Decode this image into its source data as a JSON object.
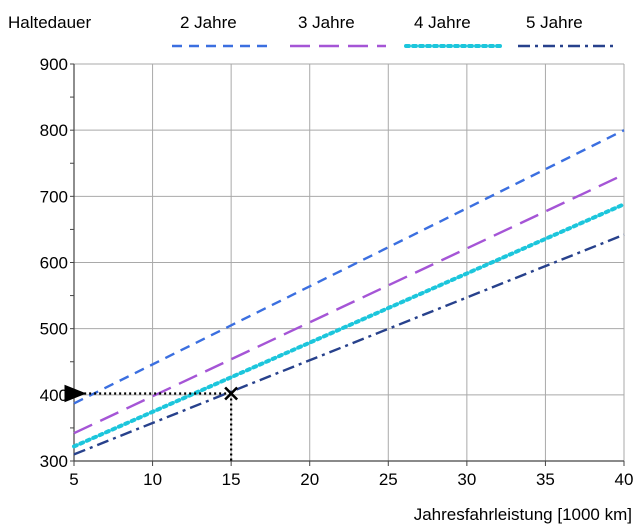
{
  "chart_data": {
    "type": "line",
    "title": "",
    "legend_title": "Haltedauer",
    "xlabel": "Jahresfahrleistung  [1000 km]",
    "ylabel": "",
    "xlim": [
      5,
      40
    ],
    "ylim": [
      300,
      900
    ],
    "x_ticks": [
      5,
      10,
      15,
      20,
      25,
      30,
      35,
      40
    ],
    "y_ticks": [
      300,
      400,
      500,
      600,
      700,
      800,
      900
    ],
    "grid": true,
    "legend_position": "top",
    "series": [
      {
        "name": "2 Jahre",
        "color": "#3b6fe0",
        "dash": "dashed",
        "x": [
          5,
          40
        ],
        "y": [
          387,
          800
        ]
      },
      {
        "name": "3 Jahre",
        "color": "#a555d6",
        "dash": "long-dashed",
        "x": [
          5,
          40
        ],
        "y": [
          342,
          733
        ]
      },
      {
        "name": "4 Jahre",
        "color": "#1cc6dc",
        "dash": "dotted",
        "x": [
          5,
          40
        ],
        "y": [
          322,
          688
        ]
      },
      {
        "name": "5 Jahre",
        "color": "#27418c",
        "dash": "dash-dot",
        "x": [
          5,
          40
        ],
        "y": [
          310,
          642
        ]
      }
    ],
    "annotation": {
      "marker": "x",
      "point": [
        15,
        402
      ],
      "arrow_to_y_axis": true,
      "drop_to_x_axis": true
    }
  }
}
